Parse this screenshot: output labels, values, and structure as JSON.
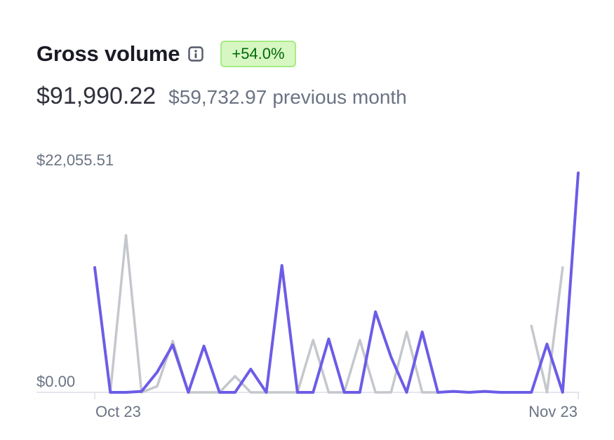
{
  "header": {
    "title": "Gross volume",
    "info_icon": "info-icon",
    "badge": "+54.0%",
    "badge_color": "#d7f7c2"
  },
  "totals": {
    "current": "$91,990.22",
    "previous_value": "$59,732.97",
    "previous_label": "previous month"
  },
  "chart_data": {
    "type": "line",
    "ylim": [
      0,
      22055.51
    ],
    "ytick_labels": [
      "$22,055.51",
      "$0.00"
    ],
    "xtick_labels": [
      "Oct 23",
      "Nov 23"
    ],
    "series": [
      {
        "color": "#6c5ce7",
        "values": [
          12400,
          0,
          0,
          100,
          2000,
          4700,
          0,
          4600,
          0,
          0,
          2300,
          0,
          12600,
          0,
          0,
          5300,
          0,
          0,
          8000,
          3500,
          0,
          6000,
          0,
          100,
          0,
          100,
          0,
          0,
          0,
          4800,
          0,
          21800
        ]
      },
      {
        "color": "#c4c7cc",
        "values": [
          null,
          0,
          15600,
          0,
          600,
          5100,
          0,
          0,
          0,
          1600,
          0,
          0,
          0,
          0,
          5200,
          0,
          0,
          5200,
          0,
          0,
          6000,
          0,
          0,
          null,
          null,
          null,
          null,
          null,
          6600,
          0,
          12400
        ]
      }
    ]
  }
}
